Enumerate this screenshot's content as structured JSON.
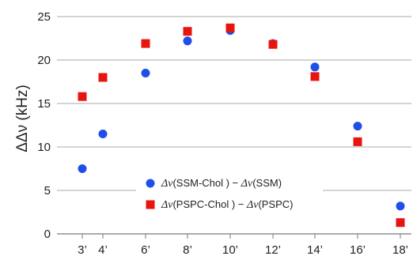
{
  "chart_data": {
    "type": "scatter",
    "title": "",
    "ylabel": "ΔΔν (kHz)",
    "xlabel": "",
    "ylim": [
      0,
      25
    ],
    "yticks": [
      0,
      5,
      10,
      15,
      20,
      25
    ],
    "categories": [
      "3’",
      "4’",
      "6’",
      "8’",
      "10’",
      "12’",
      "14’",
      "16’",
      "18’"
    ],
    "category_positions": [
      3,
      4,
      6,
      8,
      10,
      12,
      14,
      16,
      18
    ],
    "grid": "horizontal",
    "legend_position": "lower-center",
    "series": [
      {
        "name": "Δν(SSM-Chol ) − Δν(SSM)",
        "legend_parts": [
          "Δν",
          "(SSM-Chol ) − ",
          "Δν",
          "(SSM)"
        ],
        "marker": "circle",
        "color": "#1f4ee8",
        "values": [
          7.5,
          11.5,
          18.5,
          22.2,
          23.4,
          21.9,
          19.2,
          12.4,
          3.2
        ]
      },
      {
        "name": "Δν(PSPC-Chol ) − Δν(PSPC)",
        "legend_parts": [
          "Δν",
          "(PSPC-Chol ) − ",
          "Δν",
          "(PSPC)"
        ],
        "marker": "square",
        "color": "#e8150e",
        "values": [
          15.8,
          18.0,
          21.9,
          23.3,
          23.7,
          21.8,
          18.1,
          10.6,
          1.3
        ]
      }
    ]
  }
}
